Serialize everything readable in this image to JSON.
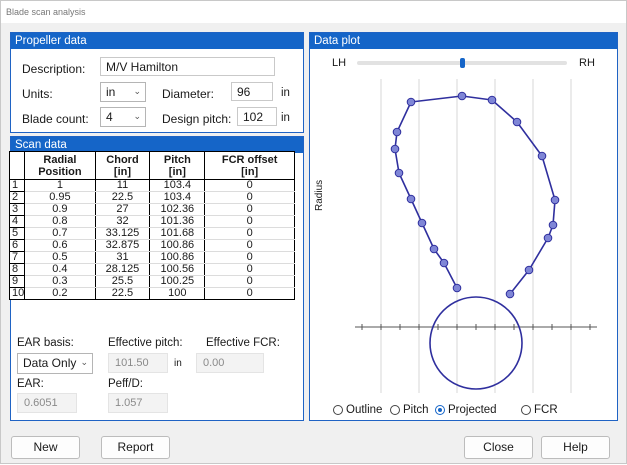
{
  "window": {
    "title": "Blade scan analysis"
  },
  "propeller": {
    "header": "Propeller data",
    "description_label": "Description:",
    "description_value": "M/V Hamilton",
    "units_label": "Units:",
    "units_value": "in",
    "diameter_label": "Diameter:",
    "diameter_value": "96",
    "diameter_unit": "in",
    "blade_count_label": "Blade count:",
    "blade_count_value": "4",
    "design_pitch_label": "Design pitch:",
    "design_pitch_value": "102",
    "design_pitch_unit": "in"
  },
  "scan": {
    "header": "Scan data",
    "columns": [
      {
        "line1": "Radial",
        "line2": "Position"
      },
      {
        "line1": "Chord",
        "line2": "[in]"
      },
      {
        "line1": "Pitch",
        "line2": "[in]"
      },
      {
        "line1": "FCR offset",
        "line2": "[in]"
      }
    ],
    "rows": [
      [
        "1",
        "1",
        "11",
        "103.4",
        "0"
      ],
      [
        "2",
        "0.95",
        "22.5",
        "103.4",
        "0"
      ],
      [
        "3",
        "0.9",
        "27",
        "102.36",
        "0"
      ],
      [
        "4",
        "0.8",
        "32",
        "101.36",
        "0"
      ],
      [
        "5",
        "0.7",
        "33.125",
        "101.68",
        "0"
      ],
      [
        "6",
        "0.6",
        "32.875",
        "100.86",
        "0"
      ],
      [
        "7",
        "0.5",
        "31",
        "100.86",
        "0"
      ],
      [
        "8",
        "0.4",
        "28.125",
        "100.56",
        "0"
      ],
      [
        "9",
        "0.3",
        "25.5",
        "100.25",
        "0"
      ],
      [
        "10",
        "0.2",
        "22.5",
        "100",
        "0"
      ]
    ],
    "ear_basis_label": "EAR basis:",
    "ear_basis_value": "Data Only",
    "effective_pitch_label": "Effective pitch:",
    "effective_pitch_value": "101.50",
    "effective_pitch_unit": "in",
    "effective_fcr_label": "Effective FCR:",
    "effective_fcr_value": "0.00",
    "ear_label": "EAR:",
    "ear_value": "0.6051",
    "peff_label": "Peff/D:",
    "peff_value": "1.057"
  },
  "plot": {
    "header": "Data plot",
    "left_label": "LH",
    "right_label": "RH",
    "slider_value": 0.5,
    "y_axis_label": "Radius",
    "radios": [
      {
        "label": "Outline",
        "selected": false
      },
      {
        "label": "Pitch",
        "selected": false
      },
      {
        "label": "Projected",
        "selected": true
      },
      {
        "label": "FCR",
        "selected": false
      }
    ],
    "line_color": "#2f2f9e",
    "marker_fill": "#7f86d6"
  },
  "buttons": {
    "new": "New",
    "report": "Report",
    "close": "Close",
    "help": "Help"
  }
}
